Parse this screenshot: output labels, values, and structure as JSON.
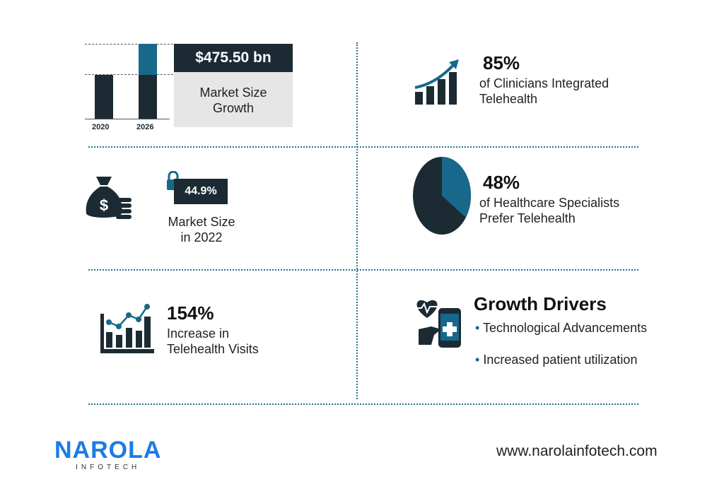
{
  "colors": {
    "dark": "#1c2b33",
    "teal": "#17688a",
    "grey": "#e6e6e6",
    "brand": "#1e7be6"
  },
  "market_growth": {
    "years": [
      "2020",
      "2026"
    ],
    "value": "$475.50 bn",
    "label_line1": "Market Size",
    "label_line2": "Growth"
  },
  "clinicians": {
    "value": "85%",
    "line1": "of Clinicians Integrated",
    "line2": "Telehealth",
    "icon": "rising-bar-chart-icon"
  },
  "market_2022": {
    "value": "44.9%",
    "line1": "Market Size",
    "line2": "in 2022",
    "icon": "money-bag-icon"
  },
  "specialists": {
    "value": "48%",
    "line1": "of Healthcare Specialists",
    "line2": "Prefer Telehealth",
    "pie_percent": 48
  },
  "visits": {
    "value": "154%",
    "line1": "Increase in",
    "line2": "Telehealth Visits",
    "icon": "line-chart-icon"
  },
  "drivers": {
    "title": "Growth Drivers",
    "items": [
      "Technological Advancements",
      "Increased patient utilization"
    ],
    "icon": "mobile-health-icon"
  },
  "footer": {
    "logo": "NAROLA",
    "logo_sub": "INFOTECH",
    "url": "www.narolainfotech.com"
  }
}
